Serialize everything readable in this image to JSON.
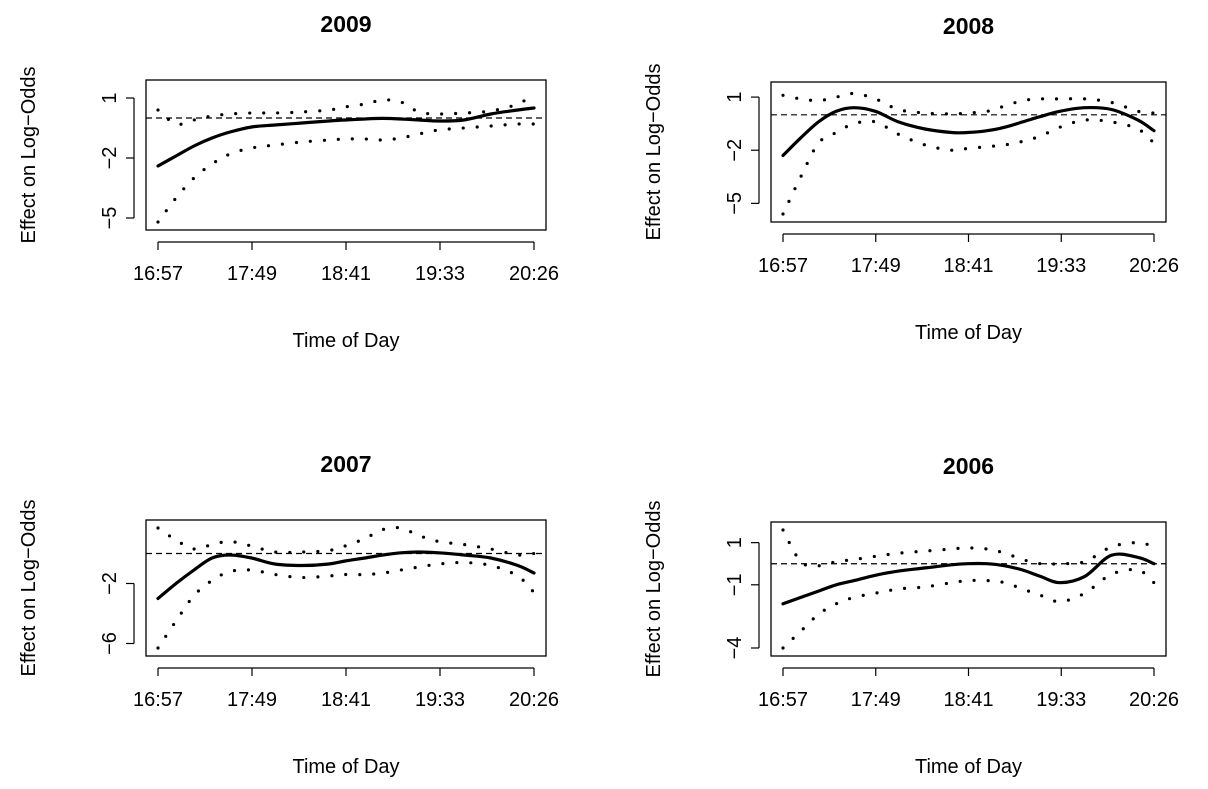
{
  "chart_data": [
    {
      "type": "line",
      "title": "2009",
      "xlabel": "Time of Day",
      "ylabel": "Effect on Log−Odds",
      "x_tick_labels": [
        "16:57",
        "17:49",
        "18:41",
        "19:33",
        "20:26"
      ],
      "xlim": [
        0,
        209
      ],
      "y_ticks": [
        1,
        -2,
        -5
      ],
      "y_tick_labels": [
        "1",
        "−2",
        "−5"
      ],
      "ylim": [
        -5.2,
        1.5
      ],
      "reference_line_y": 0,
      "x": [
        0,
        10,
        20,
        30,
        40,
        52,
        65,
        80,
        95,
        104,
        115,
        125,
        135,
        145,
        156,
        170,
        185,
        200,
        209
      ],
      "series": [
        {
          "role": "estimate",
          "style": "solid",
          "values": [
            -2.4,
            -1.9,
            -1.4,
            -1.0,
            -0.7,
            -0.45,
            -0.35,
            -0.25,
            -0.15,
            -0.1,
            -0.05,
            -0.02,
            -0.05,
            -0.1,
            -0.15,
            -0.1,
            0.2,
            0.4,
            0.5
          ]
        },
        {
          "role": "upper",
          "style": "dotted",
          "values": [
            0.4,
            -0.3,
            -0.1,
            0.1,
            0.2,
            0.25,
            0.25,
            0.3,
            0.4,
            0.55,
            0.7,
            0.9,
            0.8,
            0.3,
            0.2,
            0.25,
            0.35,
            0.7,
            1.2
          ]
        },
        {
          "role": "lower",
          "style": "dotted",
          "values": [
            -5.2,
            -4.0,
            -3.0,
            -2.3,
            -1.8,
            -1.5,
            -1.35,
            -1.2,
            -1.1,
            -1.05,
            -1.05,
            -1.1,
            -1.0,
            -0.8,
            -0.6,
            -0.5,
            -0.4,
            -0.3,
            -0.3
          ]
        }
      ]
    },
    {
      "type": "line",
      "title": "2008",
      "xlabel": "Time of Day",
      "ylabel": "Effect on Log−Odds",
      "x_tick_labels": [
        "16:57",
        "17:49",
        "18:41",
        "19:33",
        "20:26"
      ],
      "xlim": [
        0,
        209
      ],
      "y_ticks": [
        1,
        -2,
        -5
      ],
      "y_tick_labels": [
        "1",
        "−2",
        "−5"
      ],
      "ylim": [
        -5.6,
        1.4
      ],
      "reference_line_y": 0,
      "x": [
        0,
        10,
        20,
        30,
        40,
        52,
        65,
        80,
        95,
        104,
        115,
        125,
        135,
        145,
        156,
        170,
        185,
        200,
        209
      ],
      "series": [
        {
          "role": "estimate",
          "style": "solid",
          "values": [
            -2.3,
            -1.3,
            -0.4,
            0.2,
            0.4,
            0.2,
            -0.4,
            -0.8,
            -1.0,
            -1.0,
            -0.9,
            -0.7,
            -0.4,
            -0.1,
            0.2,
            0.4,
            0.3,
            -0.3,
            -0.9
          ]
        },
        {
          "role": "upper",
          "style": "dotted",
          "values": [
            1.1,
            0.9,
            0.8,
            1.0,
            1.2,
            0.9,
            0.3,
            0.1,
            0.05,
            0.1,
            0.2,
            0.5,
            0.8,
            0.9,
            0.9,
            0.9,
            0.7,
            0.2,
            0.1
          ]
        },
        {
          "role": "lower",
          "style": "dotted",
          "values": [
            -5.6,
            -3.5,
            -1.6,
            -1.0,
            -0.5,
            -0.4,
            -1.1,
            -1.7,
            -2.0,
            -1.9,
            -1.8,
            -1.7,
            -1.5,
            -1.2,
            -0.7,
            -0.3,
            -0.4,
            -0.8,
            -1.6
          ]
        }
      ]
    },
    {
      "type": "line",
      "title": "2007",
      "xlabel": "Time of Day",
      "ylabel": "Effect on Log−Odds",
      "x_tick_labels": [
        "16:57",
        "17:49",
        "18:41",
        "19:33",
        "20:26"
      ],
      "xlim": [
        0,
        209
      ],
      "y_ticks": [
        -2,
        -6
      ],
      "y_tick_labels": [
        "−2",
        "−6"
      ],
      "ylim": [
        -6.3,
        1.7
      ],
      "reference_line_y": 0,
      "x": [
        0,
        10,
        20,
        30,
        40,
        52,
        65,
        80,
        95,
        104,
        115,
        125,
        135,
        145,
        156,
        170,
        185,
        200,
        209
      ],
      "series": [
        {
          "role": "estimate",
          "style": "solid",
          "values": [
            -3.0,
            -2.0,
            -1.1,
            -0.3,
            -0.1,
            -0.3,
            -0.7,
            -0.8,
            -0.7,
            -0.5,
            -0.3,
            -0.1,
            0.05,
            0.1,
            0.05,
            -0.1,
            -0.3,
            -0.8,
            -1.3
          ]
        },
        {
          "role": "upper",
          "style": "dotted",
          "values": [
            1.7,
            0.9,
            0.3,
            0.6,
            0.8,
            0.5,
            0.1,
            0.1,
            0.2,
            0.5,
            1.0,
            1.6,
            1.7,
            1.2,
            0.8,
            0.6,
            0.3,
            -0.1,
            0.0
          ]
        },
        {
          "role": "lower",
          "style": "dotted",
          "values": [
            -6.3,
            -4.5,
            -2.8,
            -1.8,
            -1.2,
            -1.1,
            -1.4,
            -1.6,
            -1.5,
            -1.4,
            -1.4,
            -1.3,
            -1.1,
            -0.9,
            -0.7,
            -0.6,
            -0.8,
            -1.5,
            -2.6
          ]
        }
      ]
    },
    {
      "type": "line",
      "title": "2006",
      "xlabel": "Time of Day",
      "ylabel": "Effect on Log−Odds",
      "x_tick_labels": [
        "16:57",
        "17:49",
        "18:41",
        "19:33",
        "20:26"
      ],
      "xlim": [
        0,
        209
      ],
      "y_ticks": [
        1,
        -1,
        -4
      ],
      "y_tick_labels": [
        "1",
        "−1",
        "−4"
      ],
      "ylim": [
        -4.0,
        1.6
      ],
      "reference_line_y": 0,
      "x": [
        0,
        10,
        20,
        30,
        40,
        52,
        65,
        80,
        95,
        104,
        115,
        125,
        135,
        145,
        156,
        170,
        185,
        200,
        209
      ],
      "series": [
        {
          "role": "estimate",
          "style": "solid",
          "values": [
            -1.9,
            -1.6,
            -1.3,
            -1.0,
            -0.8,
            -0.55,
            -0.35,
            -0.2,
            -0.05,
            0.0,
            0.0,
            -0.1,
            -0.3,
            -0.6,
            -0.9,
            -0.6,
            0.4,
            0.3,
            0.0
          ]
        },
        {
          "role": "upper",
          "style": "dotted",
          "values": [
            1.6,
            0.1,
            -0.1,
            0.1,
            0.2,
            0.35,
            0.5,
            0.6,
            0.7,
            0.75,
            0.7,
            0.5,
            0.2,
            0.0,
            0.0,
            0.1,
            0.8,
            1.0,
            0.8
          ]
        },
        {
          "role": "lower",
          "style": "dotted",
          "values": [
            -4.0,
            -3.2,
            -2.4,
            -1.9,
            -1.6,
            -1.4,
            -1.2,
            -1.1,
            -0.9,
            -0.8,
            -0.8,
            -0.9,
            -1.2,
            -1.5,
            -1.8,
            -1.4,
            -0.5,
            -0.3,
            -0.9
          ]
        }
      ]
    }
  ]
}
